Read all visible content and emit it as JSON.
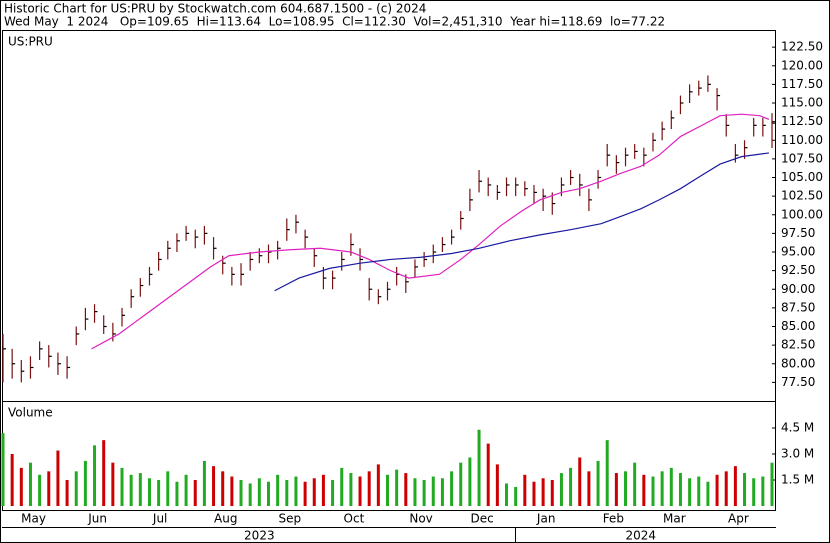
{
  "chart_data": [
    {
      "type": "ohlc",
      "title": "Historic Chart for US:PRU by Stockwatch.com 604.687.1500 - (c) 2024",
      "subtitle": "Wed May  1 2024   Op=109.65  Hi=113.64  Lo=108.95  Cl=112.30  Vol=2,451,310  Year hi=118.69  lo=77.22",
      "label": "US:PRU",
      "color": "#7a1010",
      "x": [
        0,
        3,
        6,
        9,
        12,
        15,
        18,
        21,
        24,
        27,
        30,
        33,
        36,
        39,
        42,
        45,
        48,
        51,
        54,
        57,
        60,
        63,
        66,
        69,
        72,
        75,
        78,
        81,
        84,
        87,
        90,
        93,
        96,
        99,
        102,
        105,
        108,
        111,
        114,
        117,
        120,
        123,
        126,
        129,
        132,
        135,
        138,
        141,
        144,
        147,
        150,
        153,
        156,
        159,
        162,
        165,
        168,
        171,
        174,
        177,
        180,
        183,
        186,
        189,
        192,
        195,
        198,
        201,
        204,
        207,
        210,
        213,
        216,
        219,
        222,
        225,
        228,
        231,
        234,
        237,
        240,
        243,
        246,
        249,
        252
      ],
      "high": [
        84,
        82,
        80.5,
        81,
        83,
        82.5,
        81.5,
        81,
        85,
        87.5,
        88,
        86.5,
        85.5,
        87.5,
        90,
        91.5,
        93,
        95,
        96.5,
        97.5,
        98.5,
        98,
        98.5,
        97,
        94.5,
        93,
        93.5,
        95,
        95.5,
        96,
        96.5,
        99.5,
        100,
        98,
        95.5,
        93,
        92.5,
        95,
        97.5,
        95.5,
        91.5,
        90,
        91,
        93,
        92,
        94,
        95,
        96,
        97,
        98,
        100.5,
        103.5,
        106,
        105,
        104,
        105,
        105,
        104.5,
        104,
        103.5,
        103,
        105,
        106,
        105.5,
        103.5,
        106,
        109.5,
        108,
        109,
        109.5,
        109,
        111,
        112.5,
        114,
        116,
        117.5,
        118,
        118.7,
        117,
        113.5,
        109.5,
        110,
        113,
        113,
        113.64
      ],
      "low": [
        77.5,
        78,
        77.5,
        78,
        80.5,
        79.5,
        78.5,
        78,
        82.5,
        84.5,
        85.5,
        84,
        83,
        85,
        87.5,
        89,
        90.5,
        92.5,
        94,
        95,
        96.5,
        95.5,
        96,
        94,
        92,
        90.5,
        90.5,
        92.5,
        93.5,
        93.5,
        94,
        96.5,
        97.5,
        95.5,
        93,
        90,
        90,
        92.5,
        94.5,
        92.5,
        88.5,
        88,
        88.5,
        90.5,
        89.5,
        91.5,
        93,
        93.5,
        95,
        96,
        98,
        100.5,
        103,
        102.5,
        102,
        102.5,
        102.5,
        102.5,
        101.5,
        100.5,
        100,
        102.5,
        104,
        102.5,
        100.5,
        103.5,
        106.5,
        105.5,
        106.5,
        107.5,
        106.5,
        108.5,
        110,
        111.5,
        113.5,
        115,
        116,
        116.5,
        114,
        110.5,
        107,
        107.5,
        110.5,
        110.5,
        108.95
      ],
      "close": [
        82,
        80,
        79,
        79.5,
        82,
        81,
        80,
        79.5,
        84,
        86,
        87,
        85,
        84,
        86.5,
        89,
        90.5,
        92,
        94,
        95.5,
        96.5,
        97.5,
        97,
        97.5,
        95.5,
        93.5,
        92,
        92,
        94,
        94.5,
        95,
        95.5,
        98,
        99,
        97,
        94.5,
        91.5,
        91.5,
        94,
        96,
        94,
        90,
        89,
        90,
        92,
        91,
        93,
        94,
        95,
        96,
        97,
        99.5,
        102,
        104.5,
        104,
        103,
        104,
        104,
        103.5,
        103,
        102.5,
        101.5,
        104,
        105,
        104,
        102,
        105,
        108,
        107,
        108,
        108.5,
        108,
        110,
        111.5,
        113,
        115,
        116.5,
        117,
        117.5,
        116,
        112,
        108,
        109,
        112,
        112,
        112.3
      ],
      "lines": [
        {
          "color": "#e020c0",
          "x": [
            29,
            38,
            48,
            58,
            68,
            74,
            84,
            94,
            104,
            114,
            120,
            127,
            133,
            143,
            150,
            156,
            163,
            170,
            176,
            183,
            189,
            196,
            202,
            209,
            215,
            222,
            229,
            235,
            242,
            248,
            251
          ],
          "values": [
            82,
            84,
            87,
            90,
            93,
            94.5,
            95,
            95.3,
            95.5,
            95,
            94,
            92.5,
            91.5,
            92,
            94,
            96,
            98.5,
            100.5,
            102,
            103,
            103.5,
            104.5,
            105.5,
            106.5,
            108,
            110.5,
            112,
            113.3,
            113.5,
            113.3,
            112.8
          ]
        },
        {
          "color": "#1a1aa0",
          "x": [
            89,
            97,
            107,
            117,
            127,
            137,
            147,
            156,
            166,
            176,
            186,
            196,
            202,
            209,
            215,
            222,
            229,
            235,
            242,
            251
          ],
          "values": [
            89.8,
            91.5,
            92.8,
            93.5,
            94,
            94.3,
            94.8,
            95.5,
            96.5,
            97.3,
            98,
            98.8,
            99.7,
            100.8,
            102,
            103.5,
            105.3,
            106.8,
            107.8,
            108.3
          ]
        }
      ],
      "xlim": [
        0,
        252
      ],
      "ylim": [
        75,
        124.8
      ],
      "yticks": [
        {
          "value": 77.5,
          "label": "77.50"
        },
        {
          "value": 80,
          "label": "80.00"
        },
        {
          "value": 82.5,
          "label": "82.50"
        },
        {
          "value": 85,
          "label": "85.00"
        },
        {
          "value": 87.5,
          "label": "87.50"
        },
        {
          "value": 90,
          "label": "90.00"
        },
        {
          "value": 92.5,
          "label": "92.50"
        },
        {
          "value": 95,
          "label": "95.00"
        },
        {
          "value": 97.5,
          "label": "97.50"
        },
        {
          "value": 100,
          "label": "100.00"
        },
        {
          "value": 102.5,
          "label": "102.50"
        },
        {
          "value": 105,
          "label": "105.00"
        },
        {
          "value": 107.5,
          "label": "107.50"
        },
        {
          "value": 110,
          "label": "110.00"
        },
        {
          "value": 112.5,
          "label": "112.50"
        },
        {
          "value": 115,
          "label": "115.00"
        },
        {
          "value": 117.5,
          "label": "117.50"
        },
        {
          "value": 120,
          "label": "120.00"
        },
        {
          "value": 122.5,
          "label": "122.50"
        }
      ]
    },
    {
      "type": "bar",
      "label": "Volume",
      "up_color": "#22aa22",
      "down_color": "#cc0000",
      "values": [
        4.2,
        3.0,
        2.2,
        2.5,
        1.8,
        2.0,
        3.2,
        1.5,
        2.0,
        2.6,
        3.5,
        3.8,
        2.5,
        2.2,
        1.8,
        1.9,
        1.6,
        1.5,
        2.0,
        1.4,
        1.8,
        1.5,
        2.6,
        2.3,
        2.0,
        1.7,
        1.5,
        1.3,
        1.6,
        1.4,
        1.8,
        1.5,
        1.7,
        1.4,
        1.6,
        1.8,
        1.5,
        2.2,
        1.9,
        1.7,
        2.0,
        2.4,
        1.8,
        2.1,
        1.9,
        1.6,
        1.5,
        1.7,
        1.6,
        2.0,
        2.5,
        2.8,
        4.4,
        3.6,
        2.4,
        1.3,
        1.1,
        1.8,
        1.4,
        1.6,
        1.5,
        1.9,
        2.2,
        2.8,
        2.0,
        2.6,
        3.8,
        1.9,
        2.0,
        2.5,
        1.8,
        1.7,
        2.0,
        2.2,
        1.9,
        1.6,
        1.7,
        1.4,
        1.8,
        2.0,
        2.3,
        1.9,
        1.6,
        1.7,
        2.5
      ],
      "ylim": [
        0,
        6.0
      ],
      "yticks": [
        {
          "value": 1.5,
          "label": "1.5 M"
        },
        {
          "value": 3.0,
          "label": "3.0 M"
        },
        {
          "value": 4.5,
          "label": "4.5 M"
        }
      ],
      "xticks": [
        {
          "value": 10,
          "label": "May"
        },
        {
          "value": 31,
          "label": "Jun"
        },
        {
          "value": 51.5,
          "label": "Jul"
        },
        {
          "value": 73,
          "label": "Aug"
        },
        {
          "value": 94,
          "label": "Sep"
        },
        {
          "value": 115,
          "label": "Oct"
        },
        {
          "value": 137,
          "label": "Nov"
        },
        {
          "value": 157,
          "label": "Dec"
        },
        {
          "value": 178,
          "label": "Jan"
        },
        {
          "value": 200,
          "label": "Feb"
        },
        {
          "value": 220,
          "label": "Mar"
        },
        {
          "value": 241,
          "label": "Apr"
        }
      ],
      "year_ticks": [
        {
          "value": 84,
          "label": "2023"
        },
        {
          "value": 209,
          "label": "2024"
        }
      ]
    }
  ]
}
